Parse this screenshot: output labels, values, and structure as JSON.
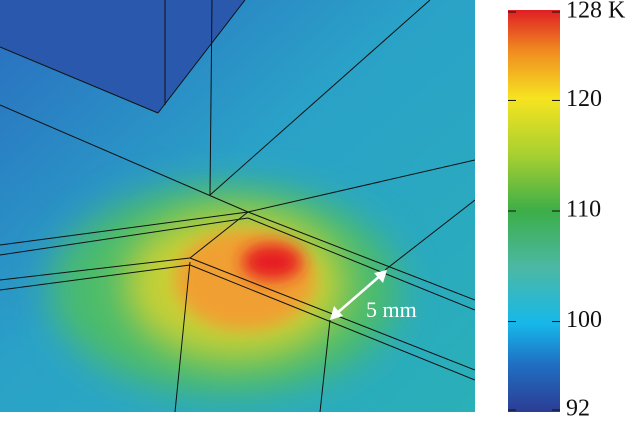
{
  "chart_data": {
    "type": "heatmap",
    "colorbar": {
      "lim": [
        92,
        128
      ],
      "ticks": [
        {
          "value": 128,
          "label": "128 K"
        },
        120,
        110,
        100,
        92
      ]
    },
    "annotation": "5 mm"
  }
}
